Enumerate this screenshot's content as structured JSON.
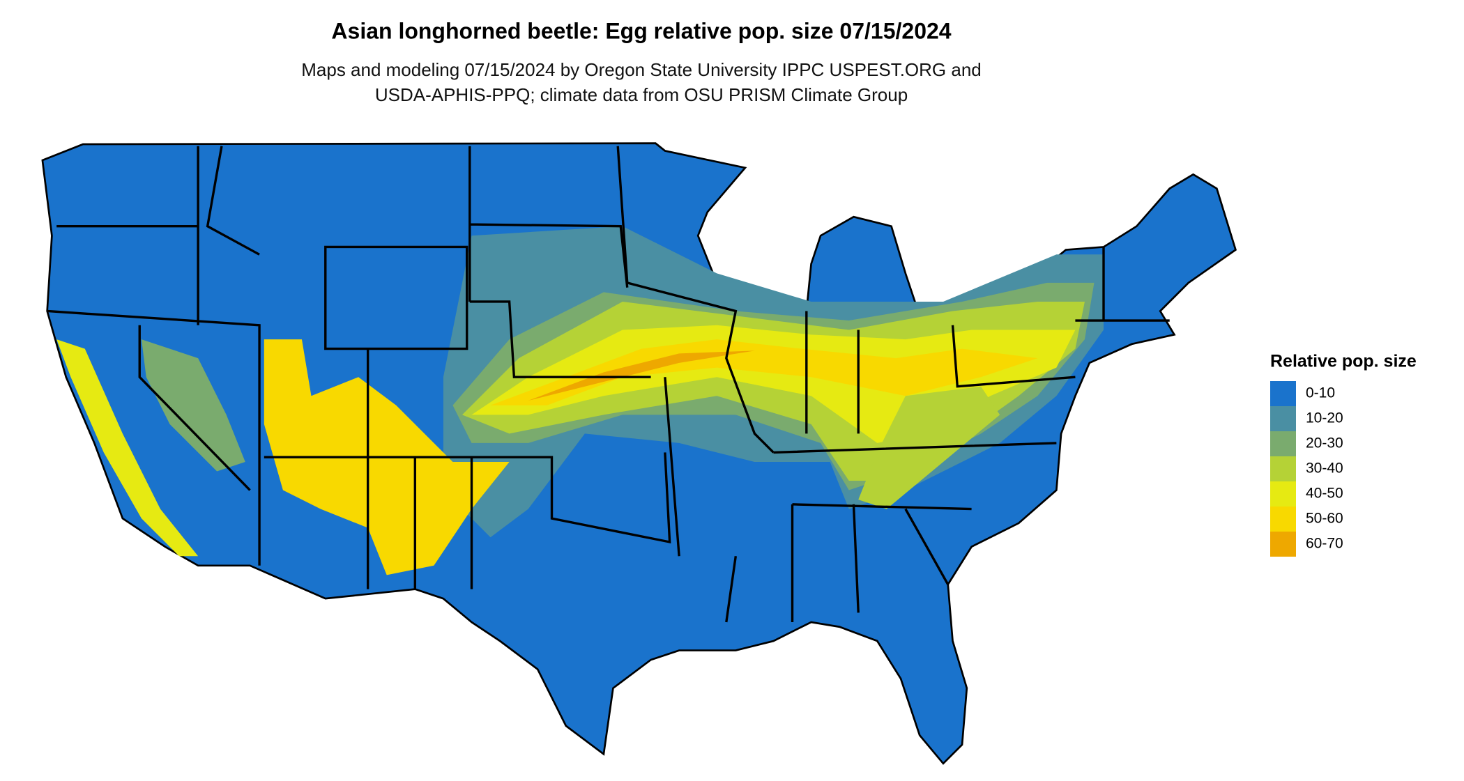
{
  "title": "Asian longhorned beetle: Egg relative pop. size 07/15/2024",
  "subtitle": [
    "Maps and modeling 07/15/2024 by Oregon State University IPPC USPEST.ORG and",
    "USDA-APHIS-PPQ; climate data from OSU PRISM Climate Group"
  ],
  "legend": {
    "title": "Relative pop. size",
    "items": [
      {
        "label": "0-10",
        "color": "#1a73cc"
      },
      {
        "label": "10-20",
        "color": "#4a8fa3"
      },
      {
        "label": "20-30",
        "color": "#7aab6e"
      },
      {
        "label": "30-40",
        "color": "#b5d236"
      },
      {
        "label": "40-50",
        "color": "#e6ea12"
      },
      {
        "label": "50-60",
        "color": "#f8d900"
      },
      {
        "label": "60-70",
        "color": "#eea800"
      }
    ]
  }
}
